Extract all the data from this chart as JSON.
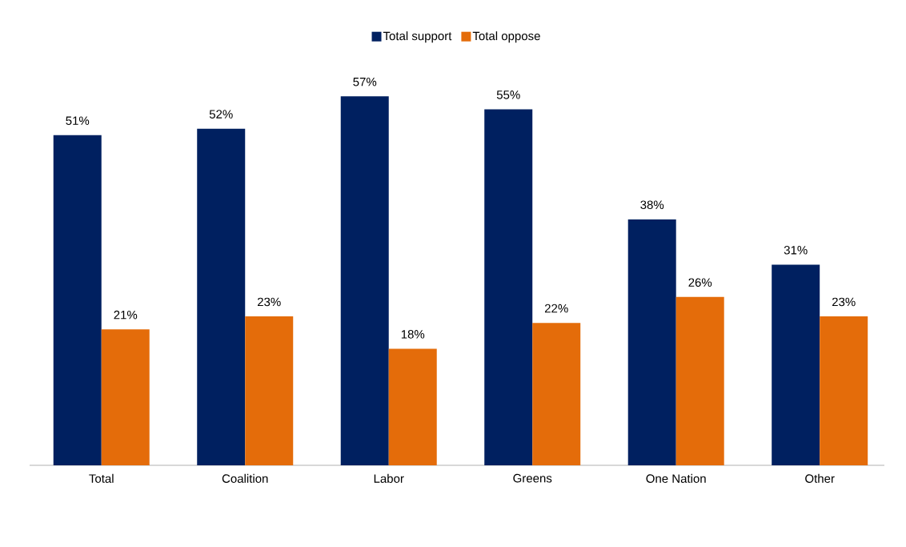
{
  "chart_data": {
    "type": "bar",
    "categories": [
      "Total",
      "Coalition",
      "Labor",
      "Greens",
      "One Nation",
      "Other"
    ],
    "series": [
      {
        "name": "Total support",
        "color": "#002060",
        "values": [
          51,
          52,
          57,
          55,
          38,
          31
        ],
        "value_labels": [
          "51%",
          "52%",
          "57%",
          "55%",
          "38%",
          "31%"
        ]
      },
      {
        "name": "Total oppose",
        "color": "#e46c0a",
        "values": [
          21,
          23,
          18,
          22,
          26,
          23
        ],
        "value_labels": [
          "21%",
          "23%",
          "18%",
          "22%",
          "26%",
          "23%"
        ]
      }
    ],
    "legend": "top"
  }
}
